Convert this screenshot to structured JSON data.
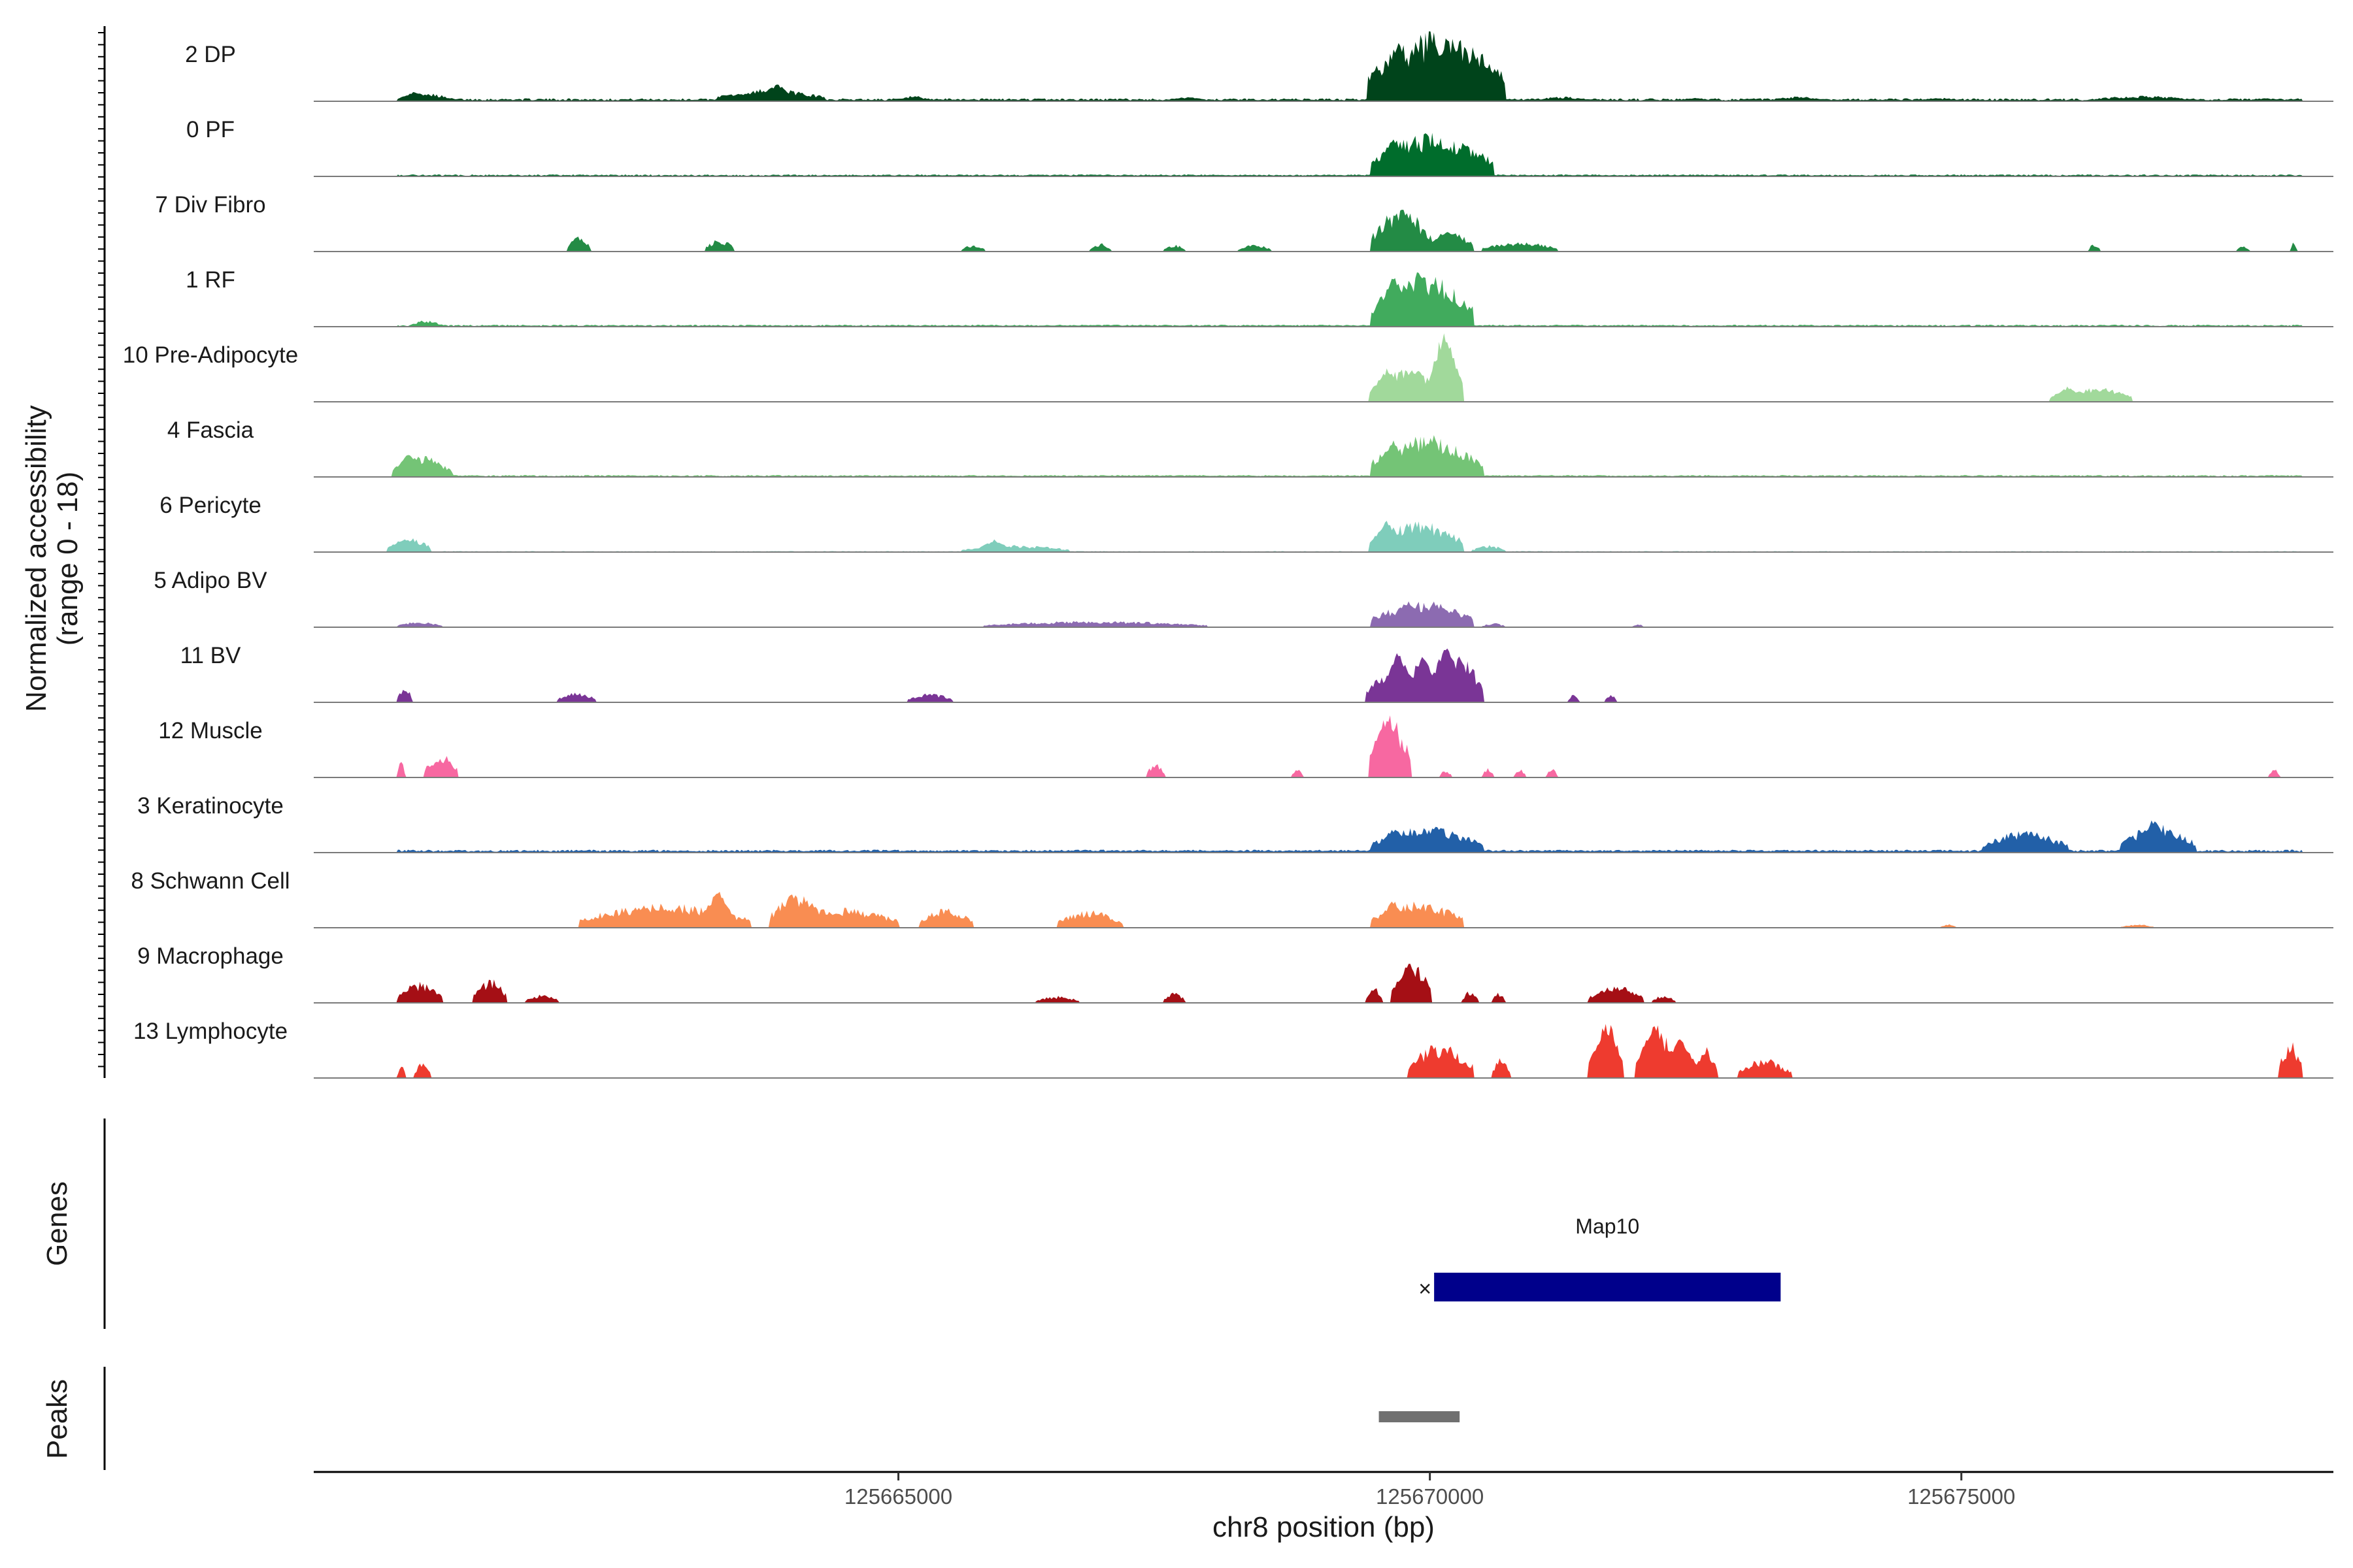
{
  "chart_data": {
    "type": "area",
    "title": "",
    "ylabel_line1": "Normalized accessibility",
    "ylabel_line2": "(range 0 - 18)",
    "xlabel": "chr8 position (bp)",
    "chromosome": "chr8",
    "xlim": [
      125659500,
      125678500
    ],
    "ylim": [
      0,
      18
    ],
    "x_ticks": [
      125665000,
      125670000,
      125675000
    ],
    "x_tick_labels": [
      "125665000",
      "125670000",
      "125675000"
    ],
    "genes_label": "Genes",
    "peaks_label": "Peaks",
    "genes": [
      {
        "name": "Map10",
        "start": 125670040,
        "end": 125673300,
        "strand": "-",
        "color": "#00008b"
      }
    ],
    "peaks": [
      {
        "start": 125669520,
        "end": 125670280,
        "color": "#707070"
      }
    ],
    "series": [
      {
        "name": "2 DP",
        "color": "#00441b",
        "segments": [
          [
            125660300,
            125660800,
            0.12
          ],
          [
            125663300,
            125664300,
            0.18
          ],
          [
            125665000,
            125665300,
            0.08
          ],
          [
            125667500,
            125667900,
            0.06
          ],
          [
            125669800,
            125669000,
            0
          ],
          [
            125669420,
            125670700,
            1.0
          ],
          [
            125671000,
            125671500,
            0.07
          ],
          [
            125673200,
            125673700,
            0.07
          ],
          [
            125674600,
            125675000,
            0.05
          ],
          [
            125676200,
            125677200,
            0.08
          ],
          [
            125677700,
            125678000,
            0.05
          ]
        ],
        "base": 0.03,
        "peaks": [
          [
            125660450,
            0.14
          ],
          [
            125663850,
            0.26
          ],
          [
            125669700,
            0.95
          ],
          [
            125670100,
            0.55
          ],
          [
            125672500,
            0.05
          ]
        ]
      },
      {
        "name": "0 PF",
        "color": "#006d2c",
        "segments": [
          [
            125660300,
            125678200,
            0.02
          ],
          [
            125669450,
            125670600,
            0.62
          ]
        ],
        "base": 0.02,
        "peaks": [
          [
            125669650,
            0.62
          ],
          [
            125670000,
            0.36
          ]
        ]
      },
      {
        "name": "7 Div Fibro",
        "color": "#238b45",
        "segments": [
          [
            125661900,
            125662100,
            0.22
          ],
          [
            125663200,
            125663450,
            0.18
          ],
          [
            125665600,
            125665800,
            0.1
          ],
          [
            125666800,
            125667000,
            0.12
          ],
          [
            125667500,
            125667700,
            0.1
          ],
          [
            125668200,
            125668500,
            0.1
          ],
          [
            125669450,
            125670000,
            0.62
          ],
          [
            125670000,
            125670400,
            0.3
          ],
          [
            125670500,
            125671200,
            0.14
          ],
          [
            125676200,
            125676300,
            0.12
          ],
          [
            125677600,
            125677700,
            0.08
          ],
          [
            125678100,
            125678150,
            0.18
          ]
        ],
        "base": 0.0,
        "peaks": [
          [
            125669750,
            0.62
          ],
          [
            125670150,
            0.32
          ]
        ]
      },
      {
        "name": "1 RF",
        "color": "#41ab5d",
        "segments": [
          [
            125660300,
            125678200,
            0.02
          ],
          [
            125669450,
            125670400,
            0.78
          ],
          [
            125660400,
            125660700,
            0.09
          ]
        ],
        "base": 0.02,
        "peaks": [
          [
            125669650,
            0.78
          ],
          [
            125670100,
            0.3
          ]
        ]
      },
      {
        "name": "10 Pre-Adipocyte",
        "color": "#a1d99b",
        "segments": [
          [
            125669500,
            125670100,
            0.5
          ],
          [
            125670000,
            125670250,
            1.0
          ],
          [
            125675900,
            125676600,
            0.22
          ]
        ],
        "base": 0.0,
        "peaks": [
          [
            125669600,
            0.5
          ],
          [
            125670150,
            1.0
          ],
          [
            125676000,
            0.22
          ],
          [
            125676350,
            0.2
          ]
        ]
      },
      {
        "name": "4 Fascia",
        "color": "#74c476",
        "segments": [
          [
            125660300,
            125660800,
            0.3
          ],
          [
            125669450,
            125670500,
            0.6
          ],
          [
            125660300,
            125678200,
            0.02
          ]
        ],
        "base": 0.02,
        "peaks": [
          [
            125660400,
            0.35
          ],
          [
            125669650,
            0.55
          ],
          [
            125670000,
            0.58
          ]
        ]
      },
      {
        "name": "6 Pericyte",
        "color": "#7fcdbb",
        "segments": [
          [
            125660300,
            125660600,
            0.2
          ],
          [
            125665600,
            125666600,
            0.1
          ],
          [
            125669450,
            125670300,
            0.45
          ],
          [
            125670400,
            125670700,
            0.1
          ]
        ],
        "base": 0.01,
        "peaks": [
          [
            125660350,
            0.22
          ],
          [
            125665900,
            0.18
          ],
          [
            125669600,
            0.48
          ],
          [
            125670000,
            0.2
          ]
        ]
      },
      {
        "name": "5 Adipo BV",
        "color": "#8c6bb1",
        "segments": [
          [
            125660300,
            125660700,
            0.08
          ],
          [
            125665800,
            125667900,
            0.09
          ],
          [
            125669450,
            125670400,
            0.38
          ],
          [
            125670500,
            125670700,
            0.06
          ],
          [
            125671900,
            125672000,
            0.05
          ]
        ],
        "base": 0.0,
        "peaks": [
          [
            125669800,
            0.38
          ],
          [
            125670100,
            0.3
          ]
        ]
      },
      {
        "name": "11 BV",
        "color": "#7a3596",
        "segments": [
          [
            125660300,
            125660420,
            0.25
          ],
          [
            125661800,
            125662150,
            0.15
          ],
          [
            125665100,
            125665500,
            0.13
          ],
          [
            125669400,
            125670150,
            0.55
          ],
          [
            125670000,
            125670500,
            0.7
          ],
          [
            125671300,
            125671400,
            0.12
          ],
          [
            125671650,
            125671750,
            0.12
          ]
        ],
        "base": 0.0,
        "peaks": [
          [
            125669700,
            0.75
          ],
          [
            125669950,
            0.72
          ],
          [
            125670150,
            0.85
          ]
        ]
      },
      {
        "name": "12 Muscle",
        "color": "#f768a1",
        "segments": [
          [
            125660300,
            125660350,
            0.25
          ],
          [
            125660550,
            125660850,
            0.35
          ],
          [
            125667350,
            125667500,
            0.22
          ],
          [
            125668700,
            125668800,
            0.15
          ],
          [
            125669430,
            125669820,
            0.9
          ],
          [
            125670100,
            125670200,
            0.12
          ],
          [
            125670500,
            125670600,
            0.14
          ],
          [
            125670800,
            125670900,
            0.14
          ],
          [
            125671100,
            125671200,
            0.14
          ],
          [
            125677900,
            125678000,
            0.12
          ]
        ],
        "base": 0.0,
        "peaks": [
          [
            125669600,
            0.95
          ]
        ]
      },
      {
        "name": "3 Keratinocyte",
        "color": "#2260a8",
        "segments": [
          [
            125660300,
            125678200,
            0.03
          ],
          [
            125669450,
            125670500,
            0.38
          ],
          [
            125675200,
            125676000,
            0.32
          ],
          [
            125676500,
            125677200,
            0.4
          ]
        ],
        "base": 0.03,
        "peaks": [
          [
            125669650,
            0.36
          ],
          [
            125670050,
            0.4
          ],
          [
            125675600,
            0.3
          ],
          [
            125676800,
            0.5
          ]
        ]
      },
      {
        "name": "8 Schwann Cell",
        "color": "#f98d52",
        "segments": [
          [
            125662000,
            125663600,
            0.35
          ],
          [
            125663800,
            125664300,
            0.5
          ],
          [
            125663800,
            125665000,
            0.3
          ],
          [
            125665200,
            125665700,
            0.28
          ],
          [
            125666500,
            125667100,
            0.25
          ],
          [
            125669450,
            125670300,
            0.38
          ],
          [
            125674800,
            125674950,
            0.05
          ],
          [
            125676500,
            125676800,
            0.05
          ]
        ],
        "base": 0.0,
        "peaks": [
          [
            125663300,
            0.55
          ],
          [
            125669650,
            0.4
          ]
        ]
      },
      {
        "name": "9 Macrophage",
        "color": "#a50f15",
        "segments": [
          [
            125660300,
            125660700,
            0.3
          ],
          [
            125661000,
            125661300,
            0.35
          ],
          [
            125661500,
            125661800,
            0.12
          ],
          [
            125666300,
            125666700,
            0.1
          ],
          [
            125667500,
            125667700,
            0.15
          ],
          [
            125669400,
            125669550,
            0.25
          ],
          [
            125669700,
            125670000,
            0.55
          ],
          [
            125670300,
            125670450,
            0.18
          ],
          [
            125670600,
            125670700,
            0.15
          ],
          [
            125671500,
            125672000,
            0.25
          ],
          [
            125672100,
            125672300,
            0.12
          ]
        ],
        "base": 0.0,
        "peaks": [
          [
            125669800,
            0.6
          ]
        ]
      },
      {
        "name": "13 Lymphocyte",
        "color": "#ee3b2f",
        "segments": [
          [
            125660300,
            125660350,
            0.25
          ],
          [
            125660450,
            125660600,
            0.25
          ],
          [
            125669800,
            125670400,
            0.5
          ],
          [
            125670600,
            125670750,
            0.3
          ],
          [
            125671600,
            125671800,
            0.8
          ],
          [
            125672000,
            125672300,
            0.75
          ],
          [
            125672500,
            125672700,
            0.45
          ],
          [
            125672900,
            125673400,
            0.28
          ],
          [
            125678000,
            125678200,
            0.55
          ]
        ],
        "base": 0.0,
        "peaks": [
          [
            125671650,
            0.82
          ],
          [
            125672100,
            0.8
          ],
          [
            125672350,
            0.62
          ]
        ]
      }
    ]
  }
}
